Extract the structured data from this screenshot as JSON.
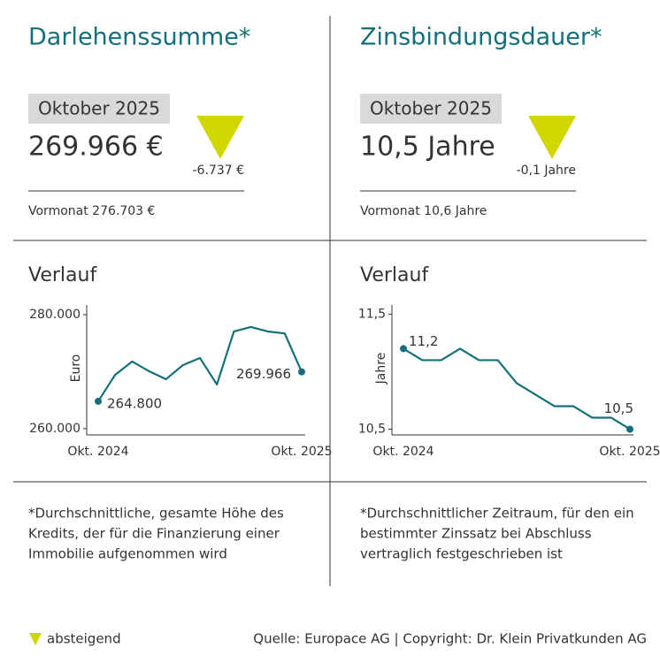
{
  "panels": [
    {
      "title": "Darlehenssumme*",
      "month": "Oktober 2025",
      "value": "269.966 €",
      "change": "-6.737 €",
      "previous": "Vormonat 276.703 €",
      "footnote": [
        "*Durchschnittliche, gesamte Höhe des",
        "Kredits, der für die Finanzierung einer",
        "Immobilie aufgenommen wird"
      ]
    },
    {
      "title": "Zinsbindungsdauer*",
      "month": "Oktober 2025",
      "value": "10,5 Jahre",
      "change": "-0,1 Jahre",
      "previous": "Vormonat 10,6 Jahre",
      "footnote": [
        "*Durchschnittlicher Zeitraum, für den ein",
        "bestimmter Zinssatz bei Abschluss",
        "vertraglich festgeschrieben ist"
      ]
    }
  ],
  "chart_data": [
    {
      "type": "line",
      "title": "Verlauf",
      "y_label": "Euro",
      "color": "#13707a",
      "categories": [
        "Okt. 2024",
        null,
        null,
        null,
        null,
        null,
        null,
        null,
        null,
        null,
        null,
        null,
        "Okt. 2025"
      ],
      "values": [
        264800,
        269450,
        271780,
        270080,
        268680,
        271160,
        272400,
        267750,
        277050,
        277830,
        277050,
        276703,
        269966
      ],
      "value_labels": [
        "264.800",
        null,
        null,
        null,
        null,
        null,
        null,
        null,
        null,
        null,
        null,
        null,
        "269.966"
      ],
      "ylim": [
        258900,
        281700
      ],
      "yticks": [
        {
          "value": 260000,
          "label": "260.000"
        },
        {
          "value": 280000,
          "label": "280.000"
        }
      ]
    },
    {
      "type": "line",
      "title": "Verlauf",
      "y_label": "Jahre",
      "color": "#13707a",
      "categories": [
        "Okt. 2024",
        null,
        null,
        null,
        null,
        null,
        null,
        null,
        null,
        null,
        null,
        null,
        "Okt. 2025"
      ],
      "values": [
        11.2,
        11.1,
        11.1,
        11.2,
        11.1,
        11.1,
        10.9,
        10.8,
        10.7,
        10.7,
        10.6,
        10.6,
        10.5
      ],
      "value_labels": [
        "11,2",
        null,
        null,
        null,
        null,
        null,
        null,
        null,
        null,
        null,
        null,
        null,
        "10,5"
      ],
      "ylim": [
        10.45,
        11.58
      ],
      "yticks": [
        {
          "value": 10.5,
          "label": "10,5"
        },
        {
          "value": 11.5,
          "label": "11,5"
        }
      ]
    }
  ],
  "legend": "absteigend",
  "source": "Quelle: Europace AG | Copyright: Dr. Klein Privatkunden AG"
}
